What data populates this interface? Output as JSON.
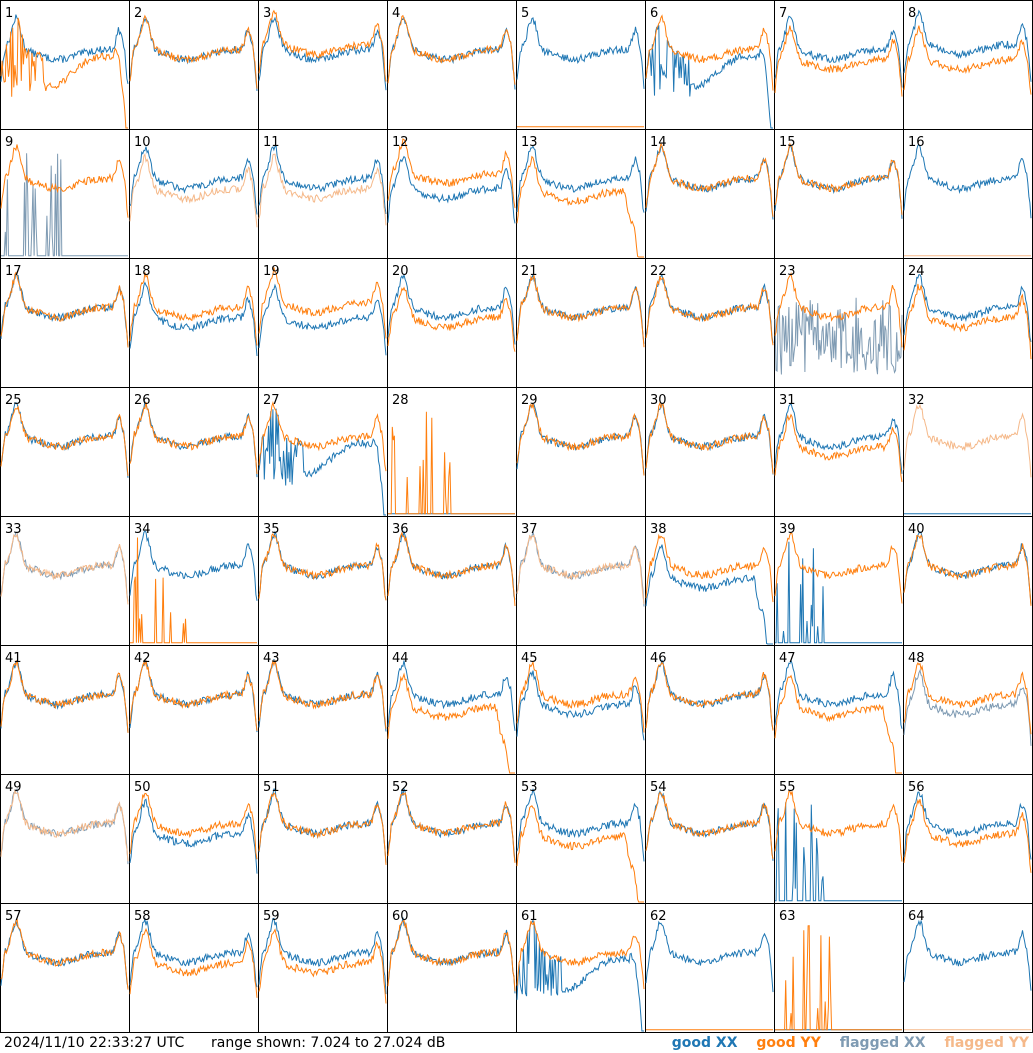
{
  "footer": {
    "timestamp": "2024/11/10 22:33:27 UTC",
    "range_text": "range shown: 7.024 to 27.024 dB"
  },
  "legend": [
    {
      "label": "good XX",
      "color": "#1f77b4"
    },
    {
      "label": "good YY",
      "color": "#ff7f0e"
    },
    {
      "label": "flagged XX",
      "color": "#7f9bb3"
    },
    {
      "label": "flagged YY",
      "color": "#f5b98a"
    }
  ],
  "chart_data": {
    "type": "line",
    "layout": "8x8 small multiples",
    "ylim_db": [
      7.024,
      27.024
    ],
    "panel_labels": [
      "1",
      "2",
      "3",
      "4",
      "5",
      "6",
      "7",
      "8",
      "9",
      "10",
      "11",
      "12",
      "13",
      "14",
      "15",
      "16",
      "17",
      "18",
      "19",
      "20",
      "21",
      "22",
      "23",
      "24",
      "25",
      "26",
      "27",
      "28",
      "29",
      "30",
      "31",
      "32",
      "33",
      "34",
      "35",
      "36",
      "37",
      "38",
      "39",
      "40",
      "41",
      "42",
      "43",
      "44",
      "45",
      "46",
      "47",
      "48",
      "49",
      "50",
      "51",
      "52",
      "53",
      "54",
      "55",
      "56",
      "57",
      "58",
      "59",
      "60",
      "61",
      "62",
      "63",
      "64"
    ],
    "panels": [
      {
        "xx": "normal",
        "yy": "noisy_drop",
        "xx_flag": false,
        "yy_flag": false
      },
      {
        "xx": "normal",
        "yy": "normal",
        "xx_flag": false,
        "yy_flag": false
      },
      {
        "xx": "normal",
        "yy": "high",
        "xx_flag": false,
        "yy_flag": false
      },
      {
        "xx": "normal",
        "yy": "normal",
        "xx_flag": false,
        "yy_flag": false
      },
      {
        "xx": "normal",
        "yy": "flat_low",
        "xx_flag": false,
        "yy_flag": false
      },
      {
        "xx": "noisy_drop",
        "yy": "normal",
        "xx_flag": false,
        "yy_flag": false
      },
      {
        "xx": "normal",
        "yy": "low",
        "xx_flag": false,
        "yy_flag": false
      },
      {
        "xx": "high",
        "yy": "low",
        "xx_flag": false,
        "yy_flag": false
      },
      {
        "xx": "spikes_low",
        "yy": "normal",
        "xx_flag": true,
        "yy_flag": false
      },
      {
        "xx": "normal",
        "yy": "low",
        "xx_flag": false,
        "yy_flag": true
      },
      {
        "xx": "normal",
        "yy": "low",
        "xx_flag": false,
        "yy_flag": true
      },
      {
        "xx": "low",
        "yy": "high",
        "xx_flag": false,
        "yy_flag": false
      },
      {
        "xx": "normal",
        "yy": "dropoff",
        "xx_flag": false,
        "yy_flag": false
      },
      {
        "xx": "normal",
        "yy": "normal",
        "xx_flag": false,
        "yy_flag": false
      },
      {
        "xx": "normal",
        "yy": "normal",
        "xx_flag": false,
        "yy_flag": false
      },
      {
        "xx": "normal",
        "yy": "flat_low",
        "xx_flag": false,
        "yy_flag": true
      },
      {
        "xx": "normal",
        "yy": "normal",
        "xx_flag": false,
        "yy_flag": false
      },
      {
        "xx": "low",
        "yy": "normal",
        "xx_flag": false,
        "yy_flag": false
      },
      {
        "xx": "low",
        "yy": "high",
        "xx_flag": false,
        "yy_flag": false
      },
      {
        "xx": "normal",
        "yy": "low",
        "xx_flag": false,
        "yy_flag": false
      },
      {
        "xx": "normal",
        "yy": "normal",
        "xx_flag": false,
        "yy_flag": false
      },
      {
        "xx": "normal",
        "yy": "normal",
        "xx_flag": false,
        "yy_flag": false
      },
      {
        "xx": "noisy_low",
        "yy": "normal",
        "xx_flag": true,
        "yy_flag": false
      },
      {
        "xx": "normal",
        "yy": "low",
        "xx_flag": false,
        "yy_flag": false
      },
      {
        "xx": "normal",
        "yy": "normal",
        "xx_flag": false,
        "yy_flag": false
      },
      {
        "xx": "normal",
        "yy": "normal",
        "xx_flag": false,
        "yy_flag": false
      },
      {
        "xx": "noisy_drop",
        "yy": "normal",
        "xx_flag": false,
        "yy_flag": false
      },
      {
        "xx": "flat_low",
        "yy": "spikes_low",
        "xx_flag": false,
        "yy_flag": false
      },
      {
        "xx": "normal",
        "yy": "normal",
        "xx_flag": false,
        "yy_flag": false
      },
      {
        "xx": "normal",
        "yy": "normal",
        "xx_flag": false,
        "yy_flag": false
      },
      {
        "xx": "normal",
        "yy": "low",
        "xx_flag": false,
        "yy_flag": false
      },
      {
        "xx": "flat_low",
        "yy": "normal",
        "xx_flag": false,
        "yy_flag": true
      },
      {
        "xx": "normal",
        "yy": "normal",
        "xx_flag": true,
        "yy_flag": true
      },
      {
        "xx": "normal",
        "yy": "spikes_low",
        "xx_flag": false,
        "yy_flag": false
      },
      {
        "xx": "normal",
        "yy": "normal",
        "xx_flag": false,
        "yy_flag": false
      },
      {
        "xx": "normal",
        "yy": "normal",
        "xx_flag": false,
        "yy_flag": false
      },
      {
        "xx": "normal",
        "yy": "normal",
        "xx_flag": true,
        "yy_flag": true
      },
      {
        "xx": "dropoff",
        "yy": "normal",
        "xx_flag": false,
        "yy_flag": false
      },
      {
        "xx": "spikes_low",
        "yy": "normal",
        "xx_flag": false,
        "yy_flag": false
      },
      {
        "xx": "normal",
        "yy": "normal",
        "xx_flag": false,
        "yy_flag": false
      },
      {
        "xx": "normal",
        "yy": "normal",
        "xx_flag": false,
        "yy_flag": false
      },
      {
        "xx": "normal",
        "yy": "normal",
        "xx_flag": false,
        "yy_flag": false
      },
      {
        "xx": "normal",
        "yy": "normal",
        "xx_flag": false,
        "yy_flag": false
      },
      {
        "xx": "normal",
        "yy": "dropoff",
        "xx_flag": false,
        "yy_flag": false
      },
      {
        "xx": "low",
        "yy": "normal",
        "xx_flag": false,
        "yy_flag": false
      },
      {
        "xx": "normal",
        "yy": "normal",
        "xx_flag": false,
        "yy_flag": false
      },
      {
        "xx": "normal",
        "yy": "dropoff",
        "xx_flag": false,
        "yy_flag": false
      },
      {
        "xx": "low",
        "yy": "normal",
        "xx_flag": true,
        "yy_flag": false
      },
      {
        "xx": "normal",
        "yy": "normal",
        "xx_flag": true,
        "yy_flag": true
      },
      {
        "xx": "low",
        "yy": "normal",
        "xx_flag": false,
        "yy_flag": false
      },
      {
        "xx": "normal",
        "yy": "normal",
        "xx_flag": false,
        "yy_flag": false
      },
      {
        "xx": "normal",
        "yy": "normal",
        "xx_flag": false,
        "yy_flag": false
      },
      {
        "xx": "normal",
        "yy": "dropoff",
        "xx_flag": false,
        "yy_flag": false
      },
      {
        "xx": "normal",
        "yy": "normal",
        "xx_flag": false,
        "yy_flag": false
      },
      {
        "xx": "spikes_low",
        "yy": "normal",
        "xx_flag": false,
        "yy_flag": false
      },
      {
        "xx": "normal",
        "yy": "low",
        "xx_flag": false,
        "yy_flag": false
      },
      {
        "xx": "normal",
        "yy": "normal",
        "xx_flag": false,
        "yy_flag": false
      },
      {
        "xx": "normal",
        "yy": "low",
        "xx_flag": false,
        "yy_flag": false
      },
      {
        "xx": "normal",
        "yy": "low",
        "xx_flag": false,
        "yy_flag": false
      },
      {
        "xx": "normal",
        "yy": "normal",
        "xx_flag": false,
        "yy_flag": false
      },
      {
        "xx": "noisy_drop",
        "yy": "normal",
        "xx_flag": false,
        "yy_flag": false
      },
      {
        "xx": "normal",
        "yy": "flat_low",
        "xx_flag": false,
        "yy_flag": false
      },
      {
        "xx": "flat_low",
        "yy": "spikes_low",
        "xx_flag": false,
        "yy_flag": false
      },
      {
        "xx": "normal",
        "yy": "flat_low",
        "xx_flag": false,
        "yy_flag": true
      }
    ]
  }
}
